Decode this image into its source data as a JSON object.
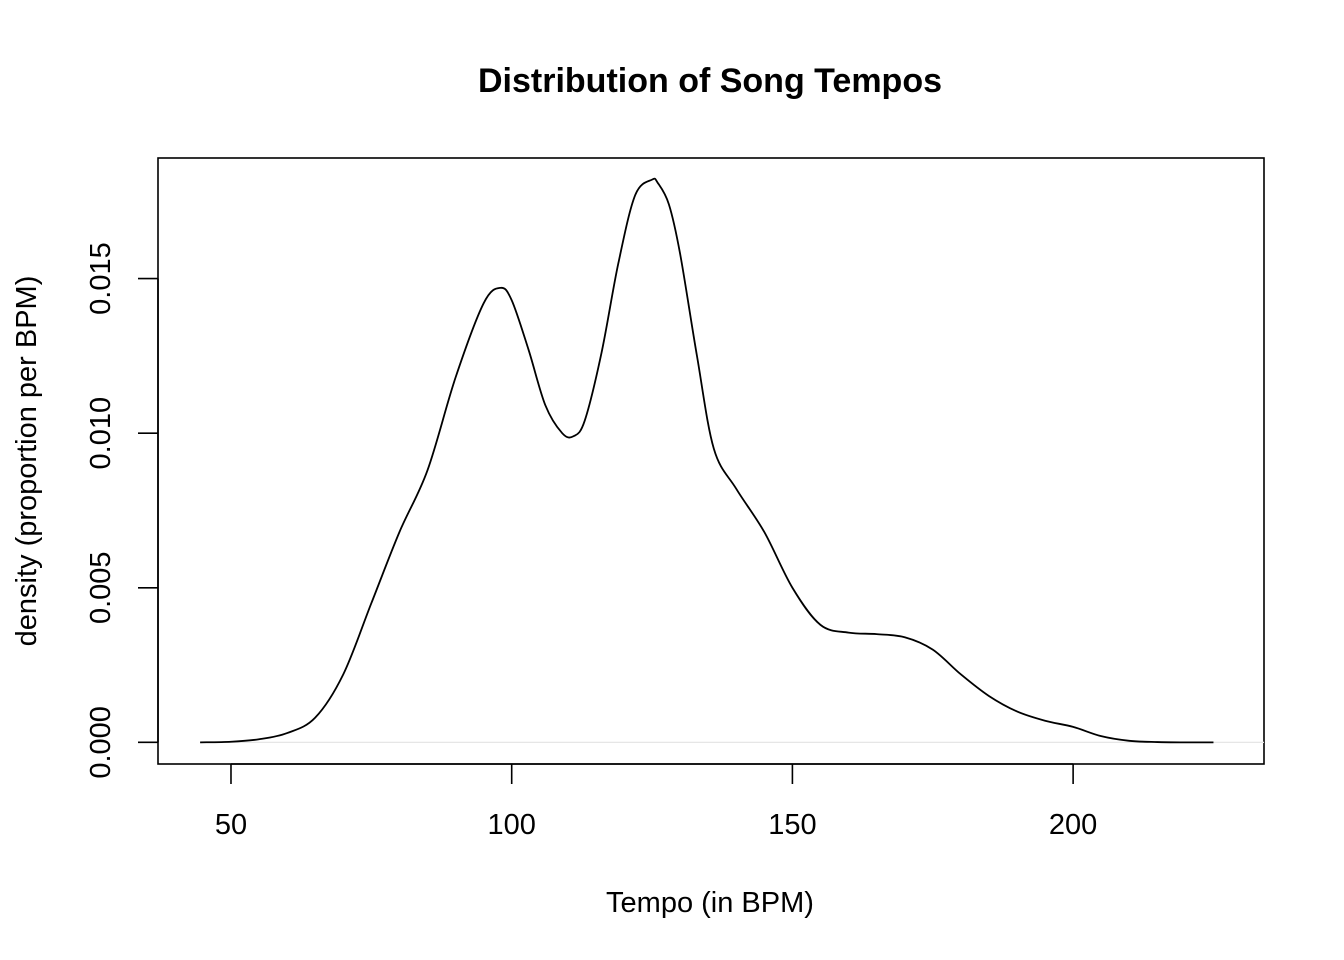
{
  "chart_data": {
    "type": "line",
    "title": "Distribution of Song Tempos",
    "xlabel": "Tempo (in BPM)",
    "ylabel": "density (proportion per BPM)",
    "xlim": [
      37,
      234
    ],
    "ylim": [
      -0.0007,
      0.0189
    ],
    "x_ticks": [
      50,
      100,
      150,
      200
    ],
    "x_tick_labels": [
      "50",
      "100",
      "150",
      "200"
    ],
    "y_ticks": [
      0.0,
      0.005,
      0.01,
      0.015
    ],
    "y_tick_labels": [
      "0.000",
      "0.005",
      "0.010",
      "0.015"
    ],
    "grid": false,
    "legend": "none",
    "line_color": "#000000",
    "series": [
      {
        "x": [
          44.5,
          50,
          55,
          60,
          65,
          70,
          75,
          80,
          85,
          90,
          95,
          98,
          100,
          103,
          106,
          109,
          111,
          113,
          116,
          119,
          122,
          125,
          126,
          128,
          130,
          133,
          136,
          140,
          145,
          150,
          155,
          160,
          165,
          170,
          175,
          180,
          185,
          190,
          195,
          200,
          205,
          210,
          215,
          220,
          225
        ],
        "y": [
          0.0,
          2e-05,
          0.0001,
          0.0003,
          0.0008,
          0.0022,
          0.0045,
          0.0068,
          0.0088,
          0.0118,
          0.0142,
          0.0147,
          0.0143,
          0.0127,
          0.0109,
          0.01,
          0.0099,
          0.0104,
          0.0126,
          0.0155,
          0.0177,
          0.0182,
          0.0181,
          0.0174,
          0.0158,
          0.0125,
          0.0095,
          0.0082,
          0.0068,
          0.005,
          0.0038,
          0.00355,
          0.0035,
          0.0034,
          0.003,
          0.0022,
          0.0015,
          0.001,
          0.0007,
          0.0005,
          0.0002,
          5e-05,
          1e-05,
          0.0,
          0.0
        ]
      }
    ]
  }
}
